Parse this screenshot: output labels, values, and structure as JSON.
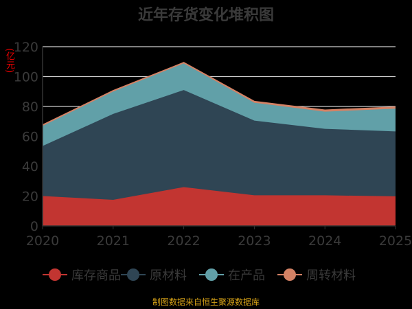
{
  "chart_data": {
    "type": "area",
    "stacked": true,
    "title": "近年存货变化堆积图",
    "ylabel": "(亿元)",
    "x": [
      "2020",
      "2021",
      "2022",
      "2023",
      "2024",
      "2025"
    ],
    "ylim": [
      0,
      120
    ],
    "yticks": [
      0,
      20,
      40,
      60,
      80,
      100,
      120
    ],
    "legend_position": "bottom",
    "series": [
      {
        "name": "库存商品",
        "color": "#c23531",
        "values": [
          20,
          17.5,
          26,
          20.5,
          20.5,
          19.8
        ]
      },
      {
        "name": "原材料",
        "color": "#2f4554",
        "values": [
          33.5,
          57.5,
          65,
          50,
          44.5,
          43.5
        ]
      },
      {
        "name": "在产品",
        "color": "#61a0a8",
        "values": [
          13.5,
          15,
          18,
          12,
          11.5,
          15.2
        ]
      },
      {
        "name": "周转材料",
        "color": "#d48265",
        "values": [
          0.5,
          0.5,
          0.3,
          0.8,
          1,
          1
        ]
      }
    ]
  },
  "footer": "制图数据来自恒生聚源数据库"
}
